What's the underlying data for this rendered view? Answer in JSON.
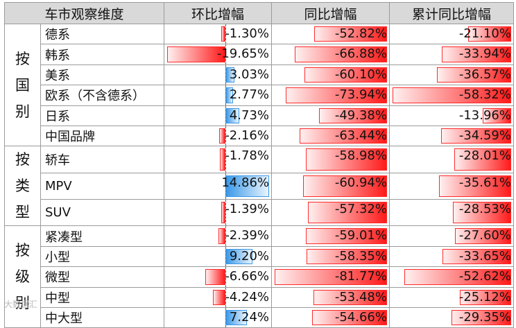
{
  "chart_data": {
    "type": "table",
    "headers": [
      "车市观察维度",
      "环比增幅",
      "同比增幅",
      "累计同比增幅"
    ],
    "groups": [
      {
        "label": "按国别",
        "rows": [
          {
            "name": "德系",
            "mom": -1.3,
            "yoy": -52.82,
            "ytd": -21.1
          },
          {
            "name": "韩系",
            "mom": -19.65,
            "yoy": -66.88,
            "ytd": -33.94
          },
          {
            "name": "美系",
            "mom": 3.03,
            "yoy": -60.1,
            "ytd": -36.57
          },
          {
            "name": "欧系（不含德系）",
            "mom": 2.77,
            "yoy": -73.94,
            "ytd": -58.32
          },
          {
            "name": "日系",
            "mom": 4.73,
            "yoy": -49.38,
            "ytd": -13.96
          },
          {
            "name": "中国品牌",
            "mom": -2.16,
            "yoy": -63.44,
            "ytd": -34.59
          }
        ]
      },
      {
        "label": "按类型",
        "rows": [
          {
            "name": "轿车",
            "mom": -1.78,
            "yoy": -58.98,
            "ytd": -28.01
          },
          {
            "name": "MPV",
            "mom": 14.86,
            "yoy": -60.94,
            "ytd": -35.61
          },
          {
            "name": "SUV",
            "mom": -1.39,
            "yoy": -57.32,
            "ytd": -28.53
          }
        ]
      },
      {
        "label": "按级别",
        "rows": [
          {
            "name": "紧凑型",
            "mom": -2.39,
            "yoy": -59.01,
            "ytd": -27.6
          },
          {
            "name": "小型",
            "mom": 9.2,
            "yoy": -58.35,
            "ytd": -33.65
          },
          {
            "name": "微型",
            "mom": -6.66,
            "yoy": -81.77,
            "ytd": -52.62
          },
          {
            "name": "中型",
            "mom": -4.24,
            "yoy": -53.48,
            "ytd": -25.12
          },
          {
            "name": "中大型",
            "mom": 7.24,
            "yoy": -54.66,
            "ytd": -29.35
          }
        ]
      }
    ],
    "unit": "%",
    "scales": {
      "mom": {
        "min": -19.65,
        "max": 14.86
      },
      "yoy": {
        "min": -81.77,
        "max": 0
      },
      "ytd": {
        "min": -58.32,
        "max": 0
      }
    },
    "colors": {
      "negative": "#ff1a1a",
      "positive": "#3a98e8",
      "header_bg": "#d9d9d9"
    }
  },
  "watermark": "大数据汇"
}
